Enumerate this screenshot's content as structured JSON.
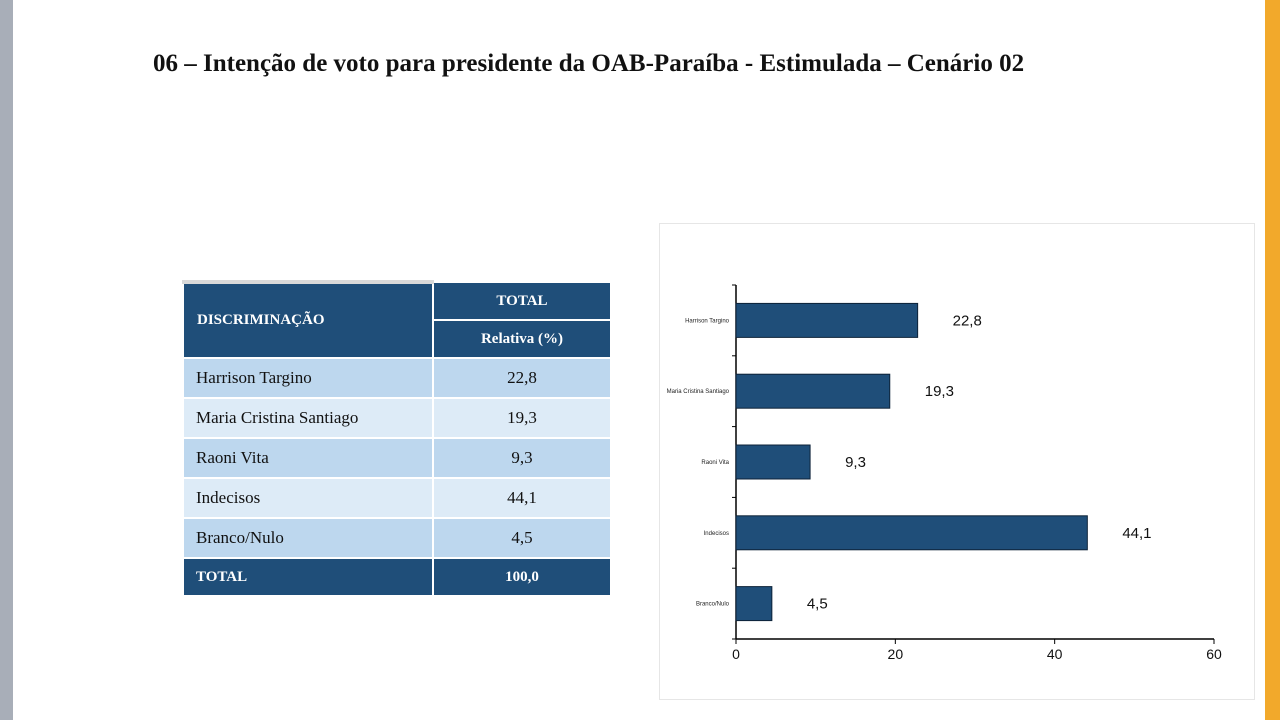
{
  "title": "06 – Intenção de voto para presidente da OAB-Paraíba - Estimulada – Cenário 02",
  "table": {
    "col1_header": "DISCRIMINAÇÃO",
    "col2_header_top": "TOTAL",
    "col2_header_sub": "Relativa (%)",
    "rows": [
      {
        "label": "Harrison Targino",
        "value": "22,8"
      },
      {
        "label": "Maria Cristina Santiago",
        "value": "19,3"
      },
      {
        "label": "Raoni Vita",
        "value": "9,3"
      },
      {
        "label": "Indecisos",
        "value": "44,1"
      },
      {
        "label": "Branco/Nulo",
        "value": "4,5"
      }
    ],
    "total_label": "TOTAL",
    "total_value": "100,0"
  },
  "chart_data": {
    "type": "bar",
    "orientation": "horizontal",
    "categories": [
      "Harrison Targino",
      "Maria Cristina Santiago",
      "Raoni Vita",
      "Indecisos",
      "Branco/Nulo"
    ],
    "values": [
      22.8,
      19.3,
      9.3,
      44.1,
      4.5
    ],
    "value_labels": [
      "22,8",
      "19,3",
      "9,3",
      "44,1",
      "4,5"
    ],
    "xlim": [
      0,
      60
    ],
    "xticks": [
      0,
      20,
      40,
      60
    ],
    "xtick_labels": [
      "0",
      "20",
      "40",
      "60"
    ],
    "grid": false,
    "legend": "none",
    "bar_color": "#1f4e79"
  },
  "colors": {
    "header_bg": "#1f4e79",
    "row_odd": "#bdd7ee",
    "row_even": "#ddebf7",
    "accent_right": "#f2a92b",
    "accent_left": "#a8aeb8"
  }
}
